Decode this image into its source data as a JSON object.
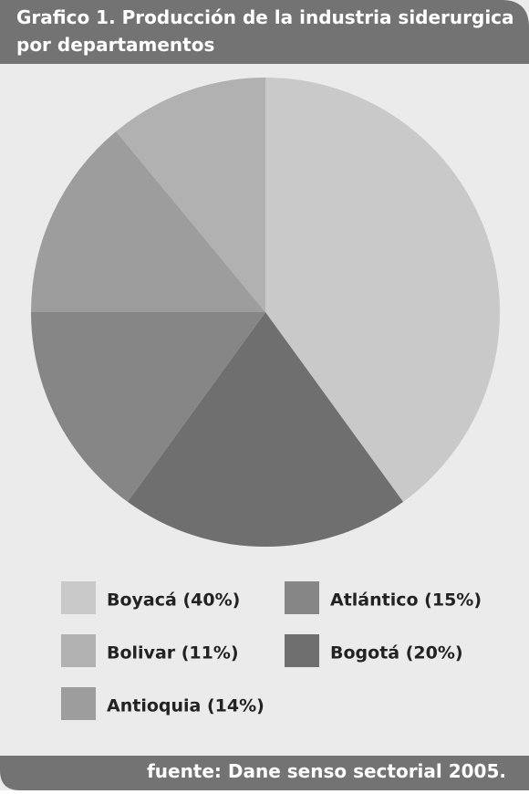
{
  "chart_data": {
    "type": "pie",
    "title": [
      "Grafico 1. Producción de la industria siderurgica",
      "por departamentos"
    ],
    "labels": [
      "Boyacá",
      "Bogotá",
      "Atlántico",
      "Antioquia",
      "Bolivar"
    ],
    "values": [
      40,
      20,
      15,
      14,
      11
    ],
    "value_labels": [
      "Boyacá (40%)",
      "Bogotá (20%)",
      "Atlántico (15%)",
      "Antioquia (14%)",
      "Bolivar (11%)"
    ],
    "colors": [
      "#c9c9c9",
      "#6f6f6f",
      "#868686",
      "#9d9d9d",
      "#b1b1b1"
    ],
    "source": "fuente: Dane senso sectorial 2005."
  }
}
